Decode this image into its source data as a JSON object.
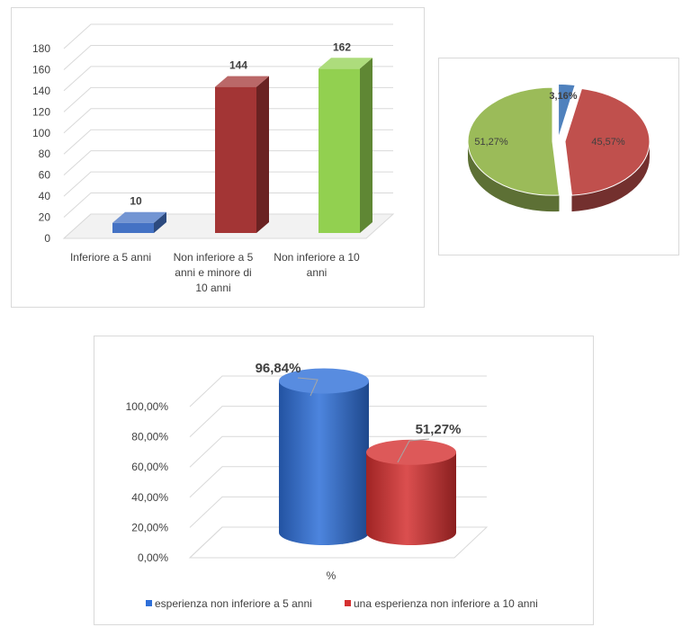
{
  "chart_data": [
    {
      "type": "bar",
      "title": "",
      "categories": [
        [
          "Inferiore a 5 anni"
        ],
        [
          "Non inferiore a 5",
          "anni e minore di",
          "10 anni"
        ],
        [
          "Non inferiore a 10",
          "anni"
        ]
      ],
      "values": [
        10,
        144,
        162
      ],
      "value_labels": [
        "10",
        "144",
        "162"
      ],
      "y_ticks": [
        "0",
        "20",
        "40",
        "60",
        "80",
        "100",
        "120",
        "140",
        "160",
        "180"
      ],
      "ylim": [
        0,
        180
      ],
      "grid": true,
      "legend": "none",
      "colors": [
        "#4472c4",
        "#a33535",
        "#92d050"
      ]
    },
    {
      "type": "pie",
      "title": "",
      "values": [
        3.16,
        45.57,
        51.27
      ],
      "labels": [
        "3,16%",
        "45,57%",
        "51,27%"
      ],
      "legend": "none",
      "colors": [
        "#4f81bd",
        "#c0504d",
        "#9bbb59"
      ]
    },
    {
      "type": "bar",
      "title": "",
      "categories": [
        "%"
      ],
      "series": [
        {
          "name": "esperienza non inferiore a 5 anni",
          "values": [
            96.84
          ],
          "label": "96,84%",
          "color": "#2e6fd8"
        },
        {
          "name": "una esperienza non inferiore a 10 anni",
          "values": [
            51.27
          ],
          "label": "51,27%",
          "color": "#d53030"
        }
      ],
      "y_ticks": [
        "0,00%",
        "20,00%",
        "40,00%",
        "60,00%",
        "80,00%",
        "100,00%"
      ],
      "ylim": [
        0,
        100
      ],
      "grid": true,
      "legend": "bottom"
    }
  ]
}
